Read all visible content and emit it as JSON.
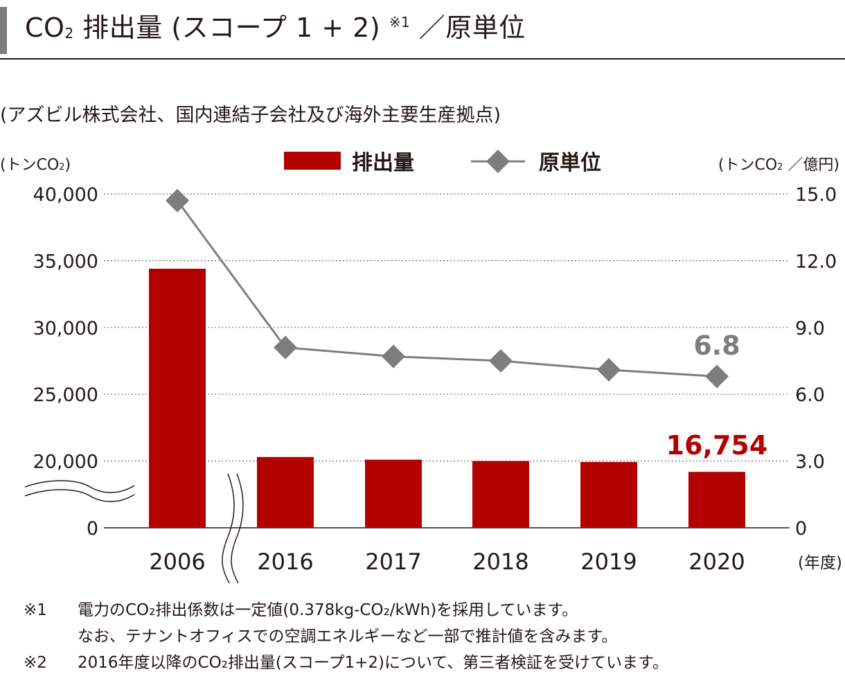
{
  "title": {
    "main": "CO",
    "sub": "2",
    "rest": " 排出量 (スコープ 1 + 2) ",
    "mark": "※1",
    "suffix": " ／原単位"
  },
  "subtitle": "(アズビル株式会社、国内連結子会社及び海外主要生産拠点)",
  "units": {
    "left_pre": "(トンCO",
    "left_sub": "2",
    "left_post": ")",
    "right_pre": "(トンCO",
    "right_sub": "2",
    "right_post": " ／億円)",
    "x": "(年度)"
  },
  "legend": {
    "bar": "排出量",
    "line": "原単位"
  },
  "chart_data": {
    "type": "bar",
    "categories": [
      "2006",
      "2016",
      "2017",
      "2018",
      "2019",
      "2020"
    ],
    "series": [
      {
        "name": "排出量",
        "type": "bar",
        "axis": "left",
        "color": "#b50000",
        "values": [
          34400,
          20300,
          20100,
          20000,
          19700,
          16754
        ]
      },
      {
        "name": "原単位",
        "type": "line",
        "axis": "right",
        "color": "#7d7d7d",
        "values": [
          14.7,
          8.1,
          7.7,
          7.5,
          7.1,
          6.8
        ]
      }
    ],
    "left_axis": {
      "ticks": [
        0,
        20000,
        25000,
        30000,
        35000,
        40000
      ],
      "tick_labels": [
        "0",
        "20,000",
        "25,000",
        "30,000",
        "35,000",
        "40,000"
      ],
      "broken": true
    },
    "right_axis": {
      "ylim": [
        0,
        15
      ],
      "ticks": [
        0,
        3,
        6,
        9,
        12,
        15
      ],
      "tick_labels": [
        "0",
        "3.0",
        "6.0",
        "9.0",
        "12.0",
        "15.0"
      ]
    },
    "data_labels": {
      "bar_last": "16,754",
      "line_last": "6.8"
    },
    "grid": true,
    "x_axis_break_after": "2006"
  },
  "notes": [
    {
      "mark": "※1",
      "text": "電力のCO₂排出係数は一定値(0.378kg-CO₂/kWh)を採用しています。"
    },
    {
      "mark": "",
      "text": "なお、テナントオフィスでの空調エネルギーなど一部で推計値を含みます。"
    },
    {
      "mark": "※2",
      "text": "2016年度以降のCO₂排出量(スコープ1+2)について、第三者検証を受けています。"
    }
  ]
}
